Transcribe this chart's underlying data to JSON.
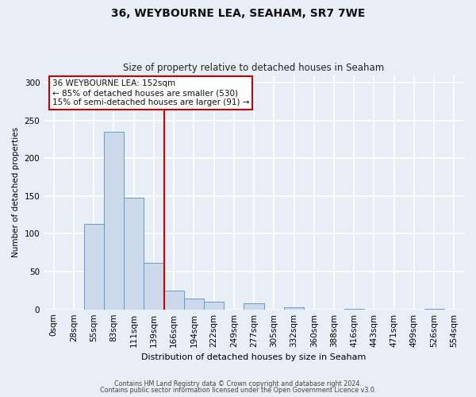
{
  "title": "36, WEYBOURNE LEA, SEAHAM, SR7 7WE",
  "subtitle": "Size of property relative to detached houses in Seaham",
  "xlabel": "Distribution of detached houses by size in Seaham",
  "ylabel": "Number of detached properties",
  "bar_labels": [
    "0sqm",
    "28sqm",
    "55sqm",
    "83sqm",
    "111sqm",
    "139sqm",
    "166sqm",
    "194sqm",
    "222sqm",
    "249sqm",
    "277sqm",
    "305sqm",
    "332sqm",
    "360sqm",
    "388sqm",
    "416sqm",
    "443sqm",
    "471sqm",
    "499sqm",
    "526sqm",
    "554sqm"
  ],
  "bar_values": [
    0,
    0,
    113,
    235,
    148,
    62,
    25,
    14,
    10,
    0,
    8,
    0,
    3,
    0,
    0,
    1,
    0,
    0,
    0,
    1,
    0
  ],
  "bar_color": "#ccd9ea",
  "bar_edge_color": "#6699cc",
  "property_line_x": 5.5,
  "property_line_color": "#cc0000",
  "annotation_line1": "36 WEYBOURNE LEA: 152sqm",
  "annotation_line2": "← 85% of detached houses are smaller (530)",
  "annotation_line3": "15% of semi-detached houses are larger (91) →",
  "annotation_box_color": "#ffffff",
  "annotation_box_edge_color": "#cc0000",
  "ylim": [
    0,
    310
  ],
  "yticks": [
    0,
    50,
    100,
    150,
    200,
    250,
    300
  ],
  "footer_line1": "Contains HM Land Registry data © Crown copyright and database right 2024.",
  "footer_line2": "Contains public sector information licensed under the Open Government Licence v3.0.",
  "bg_color": "#e8eef5",
  "plot_bg_color": "#e8eef5",
  "grid_color": "#ffffff",
  "title_fontsize": 10,
  "subtitle_fontsize": 8.5
}
